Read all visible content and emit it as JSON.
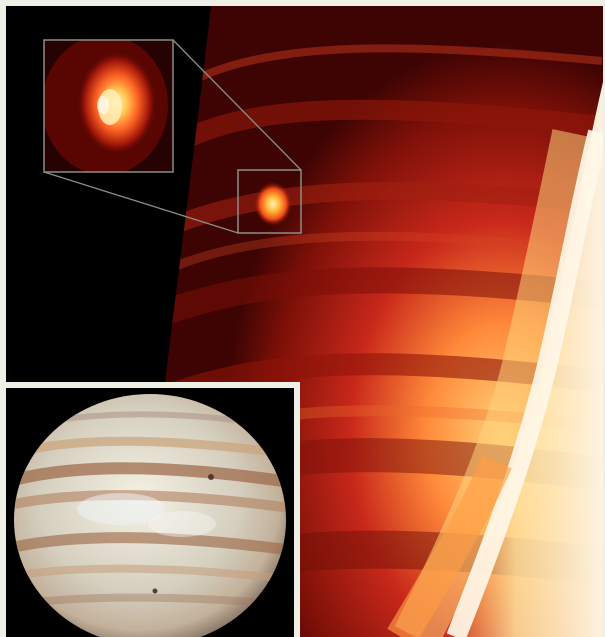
{
  "figure": {
    "main_image": "infrared-jupiter-impact",
    "zoom_box": "impact-site-zoom",
    "inset_image": "visible-light-jupiter",
    "colors": {
      "background": "#000000",
      "frame": "#eef0e6",
      "ir_dark": "#5e0a05",
      "ir_mid": "#c0281a",
      "ir_bright": "#ffd67a",
      "ir_white": "#fff6e2",
      "box_stroke": "#8d8d86"
    }
  }
}
